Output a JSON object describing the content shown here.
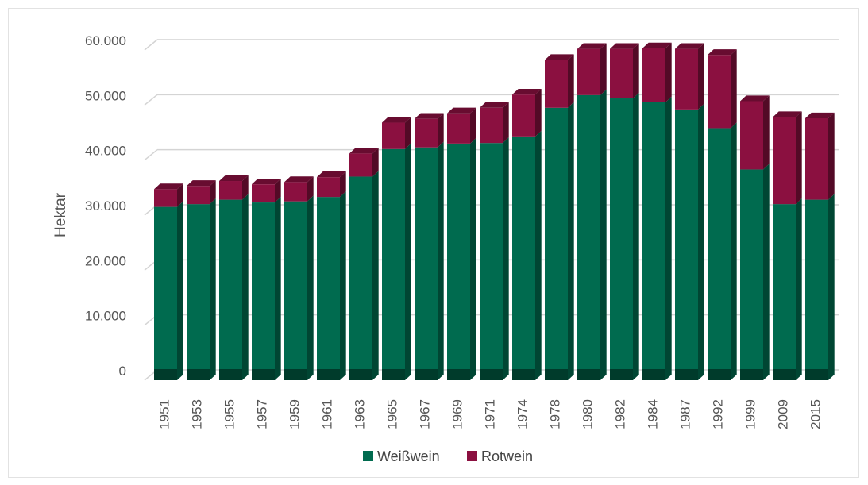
{
  "chart_data": {
    "type": "bar",
    "stacked": true,
    "style": "3d-column",
    "title": "",
    "xlabel": "",
    "ylabel": "Hektar",
    "ylim": [
      0,
      60000
    ],
    "yticks": [
      0,
      10000,
      20000,
      30000,
      40000,
      50000,
      60000
    ],
    "ytick_labels": [
      "0",
      "10.000",
      "20.000",
      "30.000",
      "40.000",
      "50.000",
      "60.000"
    ],
    "grid": true,
    "legend_position": "bottom",
    "categories": [
      "1951",
      "1953",
      "1955",
      "1957",
      "1959",
      "1961",
      "1963",
      "1965",
      "1967",
      "1969",
      "1971",
      "1974",
      "1978",
      "1980",
      "1982",
      "1984",
      "1987",
      "1992",
      "1999",
      "2009",
      "2015"
    ],
    "series": [
      {
        "name": "Weißwein",
        "color": "#006b4f",
        "values": [
          31500,
          32000,
          32800,
          32300,
          32500,
          33300,
          37000,
          42000,
          42300,
          43000,
          43100,
          44300,
          49500,
          51800,
          51200,
          50500,
          49200,
          45800,
          38300,
          32000,
          32800
        ]
      },
      {
        "name": "Rotwein",
        "color": "#8b1040",
        "values": [
          3200,
          3300,
          3400,
          3300,
          3500,
          3600,
          4200,
          4800,
          5200,
          5500,
          6400,
          7600,
          8700,
          8400,
          9000,
          9800,
          11000,
          13300,
          12400,
          15800,
          14800
        ]
      }
    ]
  }
}
